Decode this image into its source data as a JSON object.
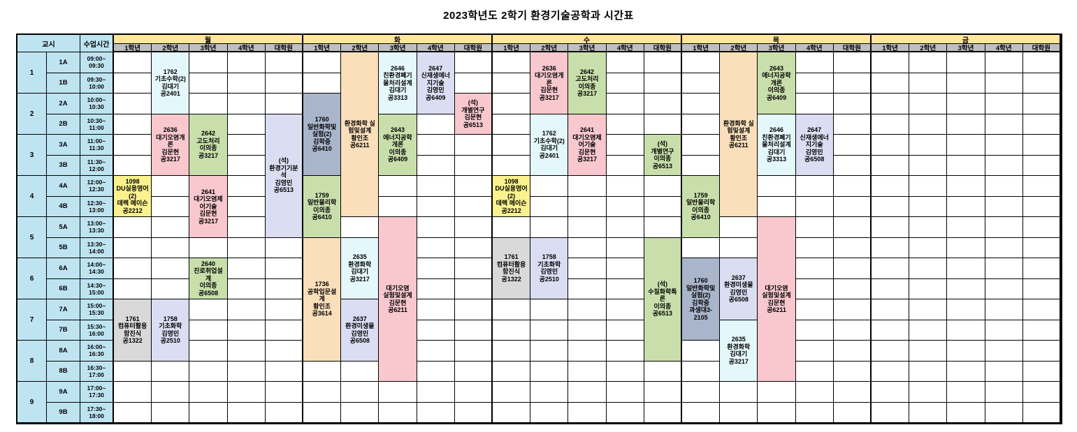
{
  "title": "2023학년도 2학기 환경기술공학과 시간표",
  "header": {
    "period_label": "교시",
    "time_label": "수업시간",
    "days": [
      "월",
      "화",
      "수",
      "목",
      "금"
    ],
    "year_columns": [
      "1학년",
      "2학년",
      "3학년",
      "4학년",
      "대학원"
    ]
  },
  "colors": {
    "header_blue": "#BEE4F2",
    "day_yellow": "#FFE699",
    "year_gray": "#BFBFBF",
    "grid_line": "#000000",
    "cyan": "#E4F7FB",
    "pink": "#F8C8CE",
    "green": "#C8DFAB",
    "yellow": "#FBF28E",
    "lavender": "#DBDDF2",
    "orange": "#FBDFBA",
    "bluegray": "#A9B5CB",
    "gray": "#D9D9D9"
  },
  "periods": [
    {
      "no": "1",
      "slots": [
        {
          "label": "1A",
          "time": [
            "09:00~",
            "09:30"
          ]
        },
        {
          "label": "1B",
          "time": [
            "09:30~",
            "10:00"
          ]
        }
      ]
    },
    {
      "no": "2",
      "slots": [
        {
          "label": "2A",
          "time": [
            "10:00~",
            "10:30"
          ]
        },
        {
          "label": "2B",
          "time": [
            "10:30~",
            "11:00"
          ]
        }
      ]
    },
    {
      "no": "3",
      "slots": [
        {
          "label": "3A",
          "time": [
            "11:00~",
            "11:30"
          ]
        },
        {
          "label": "3B",
          "time": [
            "11:30~",
            "12:00"
          ]
        }
      ]
    },
    {
      "no": "4",
      "slots": [
        {
          "label": "4A",
          "time": [
            "12:00~",
            "12:30"
          ]
        },
        {
          "label": "4B",
          "time": [
            "12:30~",
            "13:00"
          ]
        }
      ]
    },
    {
      "no": "5",
      "slots": [
        {
          "label": "5A",
          "time": [
            "13:00~",
            "13:30"
          ]
        },
        {
          "label": "5B",
          "time": [
            "13:30~",
            "14:00"
          ]
        }
      ]
    },
    {
      "no": "6",
      "slots": [
        {
          "label": "6A",
          "time": [
            "14:00~",
            "14:30"
          ]
        },
        {
          "label": "6B",
          "time": [
            "14:30~",
            "15:00"
          ]
        }
      ]
    },
    {
      "no": "7",
      "slots": [
        {
          "label": "7A",
          "time": [
            "15:00~",
            "15:30"
          ]
        },
        {
          "label": "7B",
          "time": [
            "15:30~",
            "16:00"
          ]
        }
      ]
    },
    {
      "no": "8",
      "slots": [
        {
          "label": "8A",
          "time": [
            "16:00~",
            "16:30"
          ]
        },
        {
          "label": "8B",
          "time": [
            "16:30~",
            "17:00"
          ]
        }
      ]
    },
    {
      "no": "9",
      "slots": [
        {
          "label": "9A",
          "time": [
            "17:00~",
            "17:30"
          ]
        },
        {
          "label": "9B",
          "time": [
            "17:30~",
            "18:00"
          ]
        }
      ]
    }
  ],
  "courses": [
    {
      "day": "월",
      "year": "2학년",
      "start": "1A",
      "span": 3,
      "color": "cyan",
      "lines": [
        "1762",
        "기초수학(2)",
        "김대기",
        "공2401"
      ]
    },
    {
      "day": "월",
      "year": "2학년",
      "start": "2B",
      "span": 3,
      "color": "pink",
      "lines": [
        "2636",
        "대기오염개",
        "론",
        "김문현",
        "공3217"
      ]
    },
    {
      "day": "월",
      "year": "3학년",
      "start": "2B",
      "span": 3,
      "color": "green",
      "lines": [
        "2642",
        "고도처리",
        "이의종",
        "공3217"
      ]
    },
    {
      "day": "월",
      "year": "대학원",
      "start": "2B",
      "span": 6,
      "color": "lavender",
      "lines": [
        "(석)",
        "환경기기분",
        "석",
        "김영민",
        "공6513"
      ]
    },
    {
      "day": "월",
      "year": "1학년",
      "start": "4A",
      "span": 2,
      "color": "yellow",
      "lines": [
        "1098",
        "DU실용영어",
        "(2)",
        "데렉 메이슨",
        "공2212"
      ]
    },
    {
      "day": "월",
      "year": "3학년",
      "start": "4A",
      "span": 3,
      "color": "pink",
      "lines": [
        "2641",
        "대기오염제",
        "어기술",
        "김문현",
        "공3217"
      ]
    },
    {
      "day": "월",
      "year": "3학년",
      "start": "6A",
      "span": 2,
      "color": "green",
      "lines": [
        "2640",
        "진로취업설",
        "계",
        "이의종",
        "공6508"
      ]
    },
    {
      "day": "월",
      "year": "1학년",
      "start": "7A",
      "span": 3,
      "color": "gray",
      "lines": [
        "1761",
        "컴퓨터활용",
        "함진식",
        "공1322"
      ]
    },
    {
      "day": "월",
      "year": "2학년",
      "start": "7A",
      "span": 3,
      "color": "lavender",
      "lines": [
        "1758",
        "기초화학",
        "김영민",
        "공2510"
      ]
    },
    {
      "day": "화",
      "year": "2학년",
      "start": "1A",
      "span": 8,
      "color": "orange",
      "lines": [
        "환경화학 실",
        "험및설계",
        "황인조",
        "공6211"
      ]
    },
    {
      "day": "화",
      "year": "3학년",
      "start": "1A",
      "span": 3,
      "color": "cyan",
      "lines": [
        "2646",
        "친환경폐기",
        "물처리설계",
        "김대기",
        "공3313"
      ]
    },
    {
      "day": "화",
      "year": "4학년",
      "start": "1A",
      "span": 3,
      "color": "lavender",
      "lines": [
        "2647",
        "신재생에너",
        "지기술",
        "김영민",
        "공6409"
      ]
    },
    {
      "day": "화",
      "year": "1학년",
      "start": "2A",
      "span": 4,
      "color": "bluegray",
      "lines": [
        "1760",
        "일반화학및",
        "실험(2)",
        "김학중",
        "공6410"
      ]
    },
    {
      "day": "화",
      "year": "대학원",
      "start": "2A",
      "span": 2,
      "color": "pink",
      "lines": [
        "(석)",
        "개별연구",
        "김문현",
        "공6513"
      ]
    },
    {
      "day": "화",
      "year": "3학년",
      "start": "2B",
      "span": 3,
      "color": "green",
      "lines": [
        "2643",
        "에너지공학",
        "개론",
        "이의종",
        "공6409"
      ]
    },
    {
      "day": "화",
      "year": "1학년",
      "start": "4A",
      "span": 3,
      "color": "green",
      "lines": [
        "1759",
        "일반물리학",
        "이의종",
        "공6410"
      ]
    },
    {
      "day": "화",
      "year": "3학년",
      "start": "5A",
      "span": 8,
      "color": "pink",
      "lines": [
        "대기오염",
        "실험및설계",
        "김문현",
        "공6211"
      ]
    },
    {
      "day": "화",
      "year": "1학년",
      "start": "5B",
      "span": 6,
      "color": "orange",
      "lines": [
        "1736",
        "공학입문설",
        "계",
        "황인조",
        "공3614"
      ]
    },
    {
      "day": "화",
      "year": "2학년",
      "start": "5B",
      "span": 3,
      "color": "cyan",
      "lines": [
        "2635",
        "환경화학",
        "김대기",
        "공3217"
      ]
    },
    {
      "day": "화",
      "year": "2학년",
      "start": "7A",
      "span": 3,
      "color": "lavender",
      "lines": [
        "2637",
        "환경미생물",
        "김영민",
        "공6508"
      ]
    },
    {
      "day": "수",
      "year": "2학년",
      "start": "1A",
      "span": 3,
      "color": "pink",
      "lines": [
        "2636",
        "대기오염개",
        "론",
        "김문현",
        "공3217"
      ]
    },
    {
      "day": "수",
      "year": "3학년",
      "start": "1A",
      "span": 3,
      "color": "green",
      "lines": [
        "2642",
        "고도처리",
        "이의종",
        "공3217"
      ]
    },
    {
      "day": "수",
      "year": "2학년",
      "start": "2B",
      "span": 3,
      "color": "cyan",
      "lines": [
        "1762",
        "기초수학(2)",
        "김대기",
        "공2401"
      ]
    },
    {
      "day": "수",
      "year": "3학년",
      "start": "2B",
      "span": 3,
      "color": "pink",
      "lines": [
        "2641",
        "대기오염제",
        "어기술",
        "김문현",
        "공3217"
      ]
    },
    {
      "day": "수",
      "year": "대학원",
      "start": "3A",
      "span": 2,
      "color": "green",
      "lines": [
        "(석)",
        "개별연구",
        "이의종",
        "공6513"
      ]
    },
    {
      "day": "수",
      "year": "1학년",
      "start": "4A",
      "span": 2,
      "color": "yellow",
      "lines": [
        "1098",
        "DU실용영어",
        "(2)",
        "데렉 메이슨",
        "공2212"
      ]
    },
    {
      "day": "수",
      "year": "1학년",
      "start": "5B",
      "span": 3,
      "color": "gray",
      "lines": [
        "1761",
        "컴퓨터활용",
        "함진식",
        "공1322"
      ]
    },
    {
      "day": "수",
      "year": "2학년",
      "start": "5B",
      "span": 3,
      "color": "lavender",
      "lines": [
        "1758",
        "기초화학",
        "김영민",
        "공2510"
      ]
    },
    {
      "day": "수",
      "year": "대학원",
      "start": "5B",
      "span": 6,
      "color": "green",
      "lines": [
        "(석)",
        "수질화학특",
        "론",
        "이의종",
        "공6513"
      ]
    },
    {
      "day": "목",
      "year": "2학년",
      "start": "1A",
      "span": 8,
      "color": "orange",
      "lines": [
        "환경화학 실",
        "험및설계",
        "황인조",
        "공6211"
      ]
    },
    {
      "day": "목",
      "year": "3학년",
      "start": "1A",
      "span": 3,
      "color": "green",
      "lines": [
        "2643",
        "에너지공학",
        "개론",
        "이의종",
        "공6409"
      ]
    },
    {
      "day": "목",
      "year": "3학년",
      "start": "2B",
      "span": 3,
      "color": "cyan",
      "lines": [
        "2646",
        "친환경폐기",
        "물처리설계",
        "김대기",
        "공3313"
      ]
    },
    {
      "day": "목",
      "year": "4학년",
      "start": "2B",
      "span": 3,
      "color": "lavender",
      "lines": [
        "2647",
        "신재생에너",
        "지기술",
        "김영민",
        "공6508"
      ]
    },
    {
      "day": "목",
      "year": "1학년",
      "start": "4A",
      "span": 3,
      "color": "green",
      "lines": [
        "1759",
        "일반물리학",
        "이의종",
        "공6410"
      ]
    },
    {
      "day": "목",
      "year": "3학년",
      "start": "5A",
      "span": 8,
      "color": "pink",
      "lines": [
        "대기오염",
        "실험및설계",
        "김문현",
        "공6211"
      ]
    },
    {
      "day": "목",
      "year": "1학년",
      "start": "6A",
      "span": 4,
      "color": "bluegray",
      "lines": [
        "1760",
        "일반화학및",
        "실험(2)",
        "김학중",
        "과생대3-",
        "2105"
      ]
    },
    {
      "day": "목",
      "year": "2학년",
      "start": "6A",
      "span": 3,
      "color": "lavender",
      "lines": [
        "2637",
        "환경미생물",
        "김영민",
        "공6508"
      ]
    },
    {
      "day": "목",
      "year": "2학년",
      "start": "7B",
      "span": 3,
      "color": "cyan",
      "lines": [
        "2635",
        "환경화학",
        "김대기",
        "공3217"
      ]
    }
  ]
}
